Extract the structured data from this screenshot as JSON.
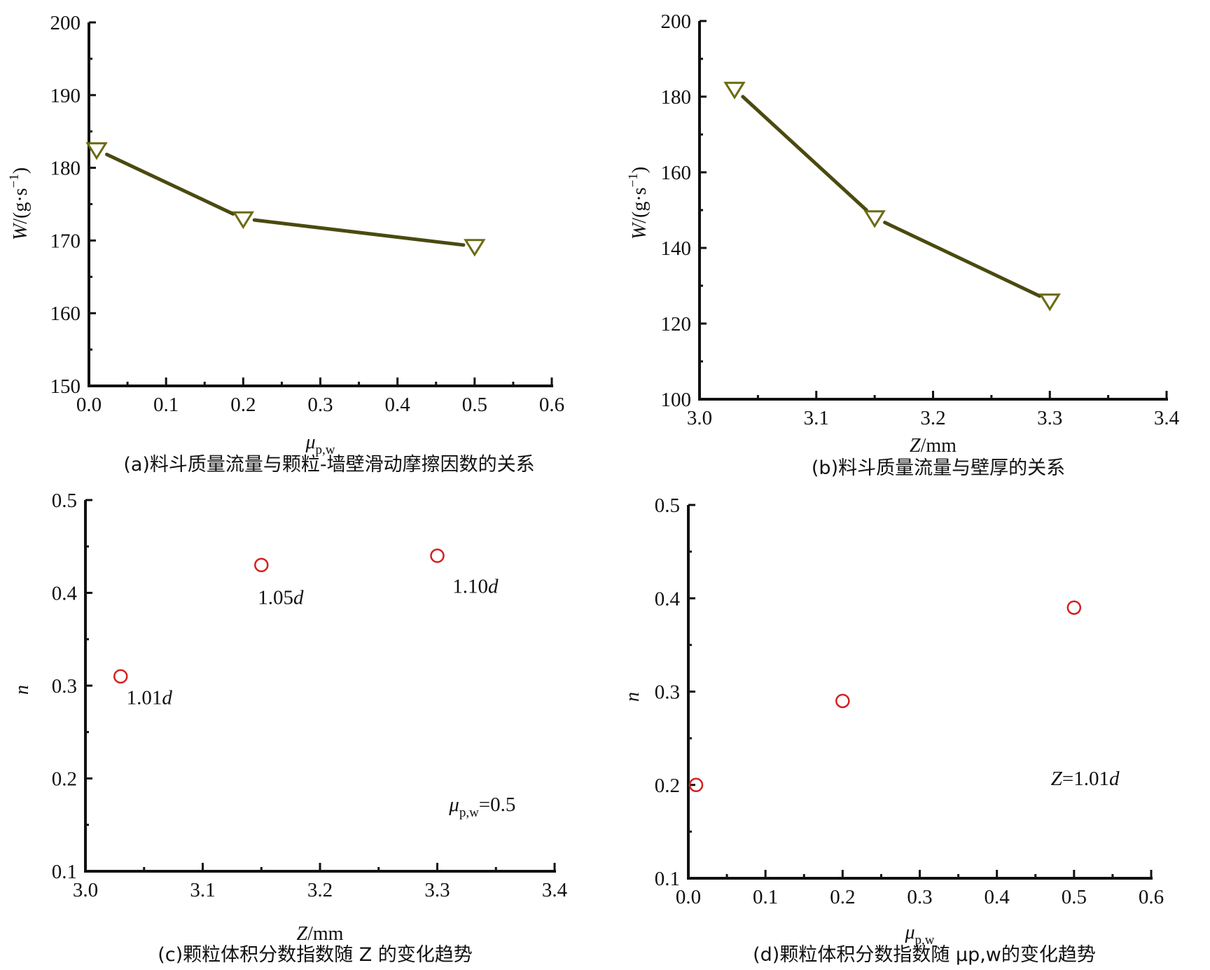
{
  "chart_data": [
    {
      "id": "a",
      "type": "line",
      "title": "",
      "caption": "(a)料斗质量流量与颗粒-墙壁滑动摩擦因数的关系",
      "xlabel": {
        "main": "μ",
        "sub": "p,w"
      },
      "ylabel": {
        "main": "W",
        "rest": "/(g·s",
        "sup": "−1",
        "close": ")"
      },
      "xlim": [
        0,
        0.6
      ],
      "ylim": [
        150,
        200
      ],
      "xticks": [
        "0.0",
        "0.1",
        "0.2",
        "0.3",
        "0.4",
        "0.5",
        "0.6"
      ],
      "yticks": [
        "150",
        "160",
        "170",
        "180",
        "190",
        "200"
      ],
      "marker": "triangle-down",
      "color": "#4a4a10",
      "series": [
        {
          "name": "W",
          "x": [
            0.01,
            0.2,
            0.5
          ],
          "y": [
            182.5,
            173.0,
            169.2
          ]
        }
      ],
      "annotations": []
    },
    {
      "id": "b",
      "type": "line",
      "title": "",
      "caption": "(b)料斗质量流量与壁厚的关系",
      "xlabel": {
        "main": "Z",
        "rest": "/mm"
      },
      "ylabel": {
        "main": "W",
        "rest": "/(g·s",
        "sup": "−1",
        "close": ")"
      },
      "xlim": [
        3.0,
        3.4
      ],
      "ylim": [
        100,
        200
      ],
      "xticks": [
        "3.0",
        "3.1",
        "3.2",
        "3.3",
        "3.4"
      ],
      "yticks": [
        "100",
        "120",
        "140",
        "160",
        "180",
        "200"
      ],
      "marker": "triangle-down",
      "color": "#4a4a10",
      "series": [
        {
          "name": "W",
          "x": [
            3.03,
            3.15,
            3.3
          ],
          "y": [
            182.0,
            148.0,
            126.0
          ]
        }
      ],
      "annotations": []
    },
    {
      "id": "c",
      "type": "scatter",
      "title": "",
      "caption": "(c)颗粒体积分数指数随 Z 的变化趋势",
      "xlabel": {
        "main": "Z",
        "rest": "/mm"
      },
      "ylabel": {
        "main": "n"
      },
      "xlim": [
        3.0,
        3.4
      ],
      "ylim": [
        0.1,
        0.5
      ],
      "xticks": [
        "3.0",
        "3.1",
        "3.2",
        "3.3",
        "3.4"
      ],
      "yticks": [
        "0.1",
        "0.2",
        "0.3",
        "0.4",
        "0.5"
      ],
      "marker": "circle-open",
      "color": "#d42020",
      "series": [
        {
          "name": "n",
          "x": [
            3.03,
            3.15,
            3.3
          ],
          "y": [
            0.31,
            0.43,
            0.44
          ]
        }
      ],
      "annotations": [
        {
          "text": "1.01",
          "italic": "d",
          "x": 3.035,
          "y": 0.28
        },
        {
          "text": "1.05",
          "italic": "d",
          "x": 3.147,
          "y": 0.388
        },
        {
          "text": "1.10",
          "italic": "d",
          "x": 3.313,
          "y": 0.4
        },
        {
          "text": "=0.5",
          "italic": "μ",
          "sub": "p,w",
          "x": 3.31,
          "y": 0.165
        }
      ]
    },
    {
      "id": "d",
      "type": "scatter",
      "title": "",
      "caption": "(d)颗粒体积分数指数随 μp,w的变化趋势",
      "xlabel": {
        "main": "μ",
        "sub": "p,w"
      },
      "ylabel": {
        "main": "n"
      },
      "xlim": [
        0,
        0.6
      ],
      "ylim": [
        0.1,
        0.5
      ],
      "xticks": [
        "0.0",
        "0.1",
        "0.2",
        "0.3",
        "0.4",
        "0.5",
        "0.6"
      ],
      "yticks": [
        "0.1",
        "0.2",
        "0.3",
        "0.4",
        "0.5"
      ],
      "marker": "circle-open",
      "color": "#d42020",
      "series": [
        {
          "name": "n",
          "x": [
            0.01,
            0.2,
            0.5
          ],
          "y": [
            0.2,
            0.29,
            0.39
          ]
        }
      ],
      "annotations": [
        {
          "text": "=1.01",
          "italic_prefix": "Z",
          "italic": "d",
          "x": 0.47,
          "y": 0.2
        }
      ]
    }
  ]
}
